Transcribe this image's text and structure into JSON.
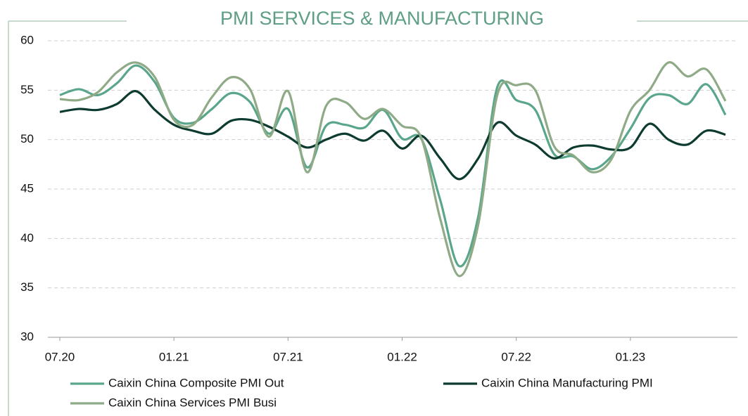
{
  "chart_data": {
    "type": "line",
    "title": "PMI SERVICES & MANUFACTURING",
    "categories": [
      "07.20",
      null,
      null,
      null,
      null,
      null,
      "01.21",
      null,
      null,
      null,
      null,
      null,
      "07.21",
      null,
      null,
      null,
      null,
      null,
      "01.22",
      null,
      null,
      null,
      null,
      null,
      "07.22",
      null,
      null,
      null,
      null,
      null,
      "01.23",
      null,
      null,
      null,
      null,
      null
    ],
    "series": [
      {
        "name": "Caixin China Composite PMI Out",
        "color": "#5aa68a",
        "values": [
          54.5,
          55.1,
          54.5,
          55.7,
          57.5,
          55.8,
          52.2,
          51.7,
          53.1,
          54.7,
          53.8,
          50.6,
          53.1,
          47.2,
          51.4,
          51.5,
          51.2,
          53.0,
          50.1,
          50.1,
          43.9,
          37.2,
          42.2,
          55.3,
          54.0,
          53.0,
          48.5,
          48.3,
          47.0,
          48.3,
          51.1,
          54.2,
          54.5,
          53.6,
          55.6,
          52.5
        ]
      },
      {
        "name": "Caixin China Manufacturing PMI",
        "color": "#0d3b30",
        "values": [
          52.8,
          53.1,
          53.0,
          53.6,
          54.9,
          53.0,
          51.5,
          50.9,
          50.6,
          51.9,
          52.0,
          51.3,
          50.3,
          49.2,
          50.0,
          50.6,
          49.9,
          50.9,
          49.1,
          50.4,
          48.1,
          46.0,
          48.1,
          51.7,
          50.4,
          49.5,
          48.1,
          49.2,
          49.4,
          49.0,
          49.2,
          51.6,
          50.0,
          49.5,
          50.9,
          50.5
        ]
      },
      {
        "name": "Caixin China Services PMI Busi",
        "color": "#8faa86",
        "values": [
          54.1,
          54.0,
          54.8,
          56.8,
          57.8,
          56.3,
          52.0,
          51.5,
          54.3,
          56.3,
          55.1,
          50.3,
          54.9,
          46.7,
          53.4,
          53.8,
          52.1,
          53.1,
          51.4,
          50.2,
          42.0,
          36.2,
          41.4,
          54.5,
          55.5,
          55.0,
          49.3,
          48.4,
          46.7,
          48.0,
          52.9,
          55.0,
          57.8,
          56.4,
          57.1,
          53.9
        ]
      }
    ],
    "ylim": [
      30,
      60
    ],
    "yticks": [
      30,
      35,
      40,
      45,
      50,
      55,
      60
    ],
    "grid": true
  }
}
